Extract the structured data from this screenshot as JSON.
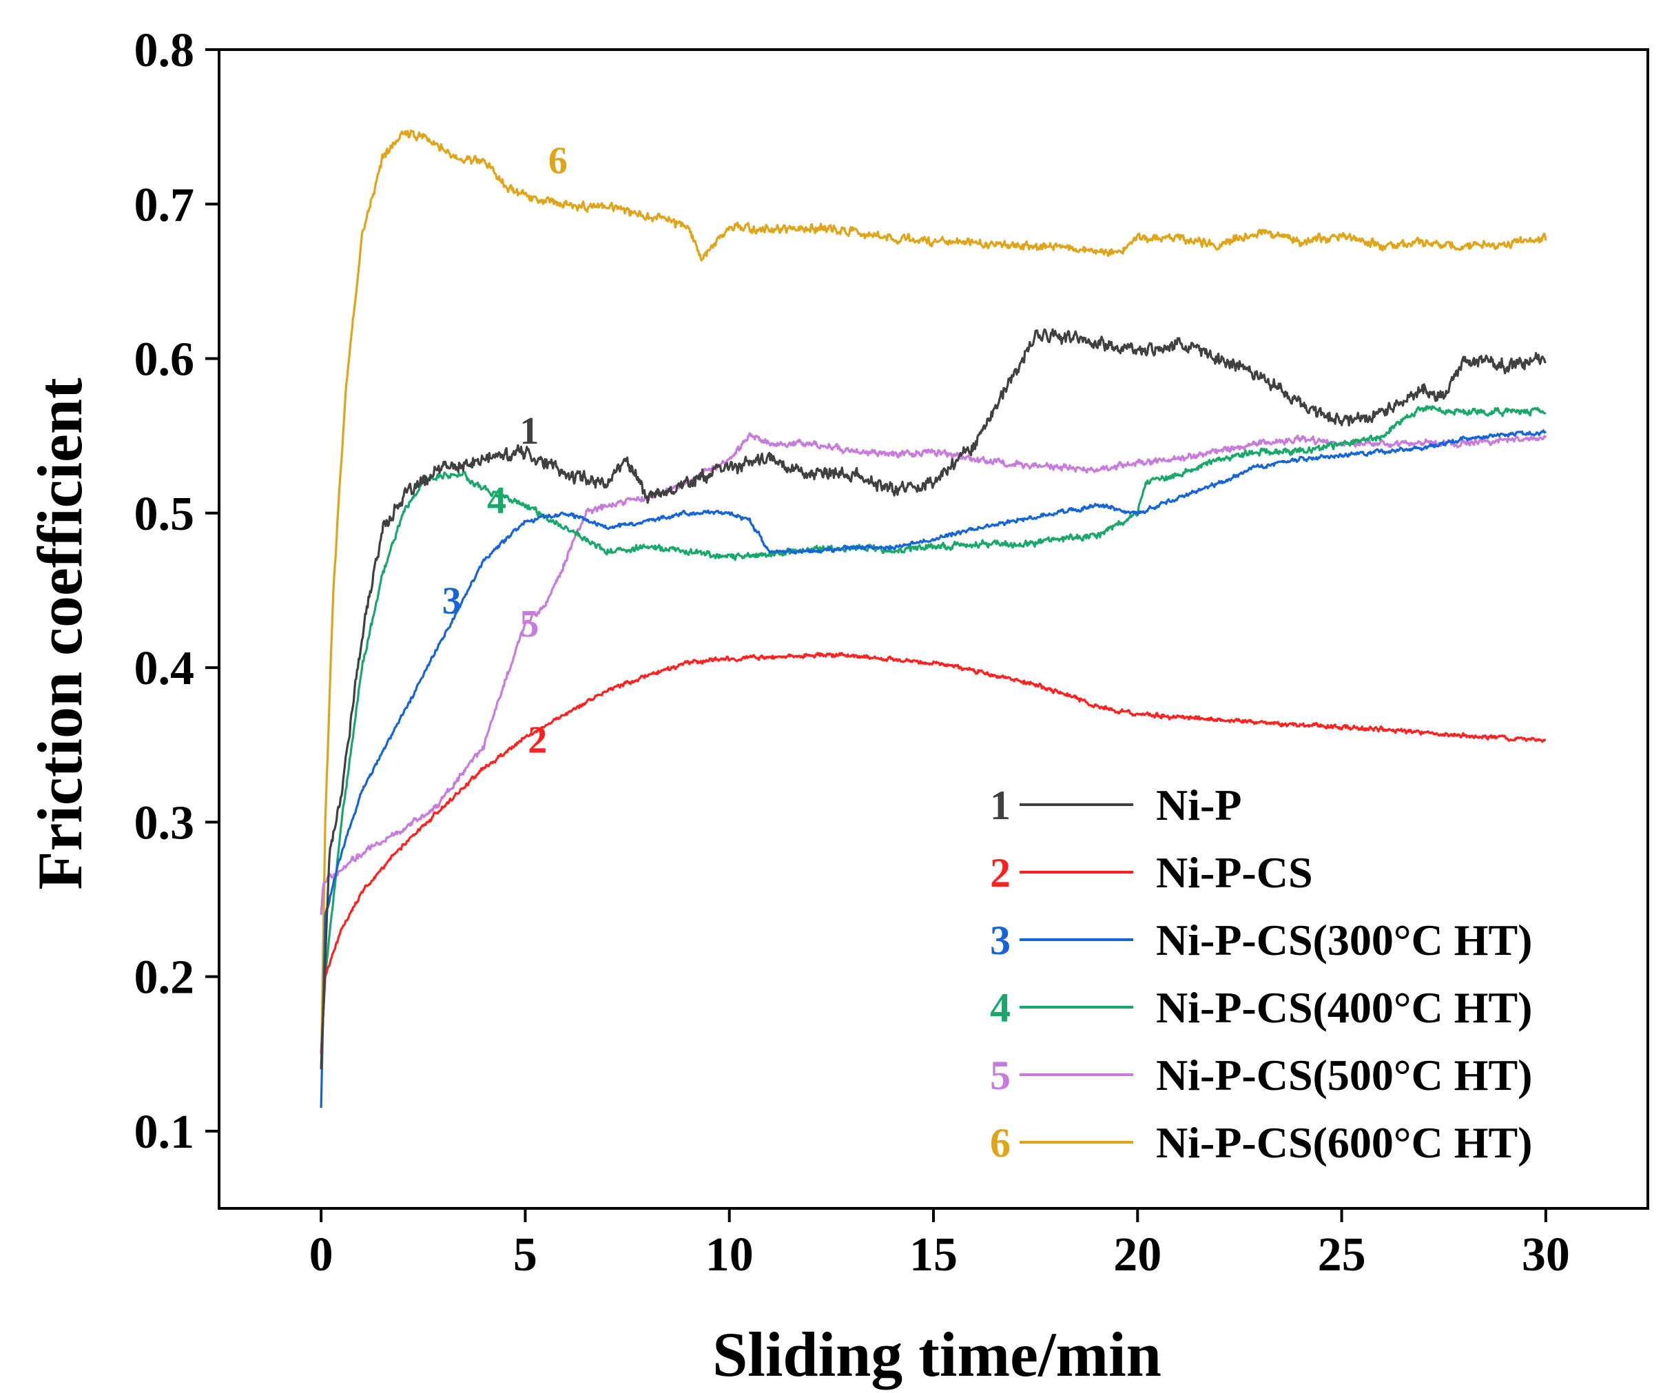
{
  "chart_data": {
    "type": "line",
    "xlabel": "Sliding time/min",
    "ylabel": "Friction coefficient",
    "xlim": [
      -2.5,
      32.5
    ],
    "ylim": [
      0.05,
      0.8
    ],
    "xticks": [
      0,
      5,
      10,
      15,
      20,
      25,
      30
    ],
    "yticks": [
      0.1,
      0.2,
      0.3,
      0.4,
      0.5,
      0.6,
      0.7,
      0.8
    ],
    "xtick_labels": [
      "0",
      "5",
      "10",
      "15",
      "20",
      "25",
      "30"
    ],
    "ytick_labels": [
      "0.1",
      "0.2",
      "0.3",
      "0.4",
      "0.5",
      "0.6",
      "0.7",
      "0.8"
    ],
    "grid": false,
    "legend_position": "lower-right",
    "series": [
      {
        "id": "1",
        "name": "Ni-P",
        "color": "#404040",
        "label_point": [
          5.1,
          0.545
        ],
        "noise": 0.006,
        "x": [
          0,
          0.2,
          0.5,
          1,
          1.5,
          2,
          2.5,
          3,
          3.5,
          4,
          5,
          6,
          7,
          7.5,
          8,
          9,
          10,
          11,
          12,
          13,
          14,
          15,
          16,
          17,
          17.5,
          18,
          19,
          20,
          21,
          22,
          23,
          24,
          25,
          26,
          27,
          27.5,
          28,
          29,
          30
        ],
        "y": [
          0.14,
          0.28,
          0.32,
          0.42,
          0.49,
          0.51,
          0.52,
          0.53,
          0.53,
          0.535,
          0.54,
          0.525,
          0.52,
          0.535,
          0.51,
          0.52,
          0.53,
          0.535,
          0.525,
          0.525,
          0.515,
          0.52,
          0.545,
          0.59,
          0.615,
          0.615,
          0.61,
          0.605,
          0.61,
          0.6,
          0.59,
          0.57,
          0.56,
          0.565,
          0.58,
          0.575,
          0.6,
          0.595,
          0.6
        ]
      },
      {
        "id": "2",
        "name": "Ni-P-CS",
        "color": "#ff2020",
        "label_point": [
          5.3,
          0.345
        ],
        "noise": 0.002,
        "x": [
          0,
          0.1,
          0.5,
          1,
          2,
          3,
          4,
          5,
          6,
          7,
          8,
          9,
          10,
          12,
          13,
          14,
          15,
          16,
          17,
          18,
          19,
          20,
          22,
          24,
          26,
          28,
          30
        ],
        "y": [
          0.15,
          0.2,
          0.23,
          0.255,
          0.285,
          0.31,
          0.335,
          0.355,
          0.37,
          0.385,
          0.395,
          0.403,
          0.406,
          0.408,
          0.408,
          0.405,
          0.403,
          0.398,
          0.392,
          0.385,
          0.375,
          0.37,
          0.366,
          0.363,
          0.36,
          0.356,
          0.353
        ]
      },
      {
        "id": "3",
        "name": "Ni-P-CS(300°C HT)",
        "color": "#1565d8",
        "label_point": [
          3.2,
          0.435
        ],
        "noise": 0.002,
        "x": [
          0,
          0.1,
          0.5,
          1,
          2,
          3,
          4,
          5,
          6,
          7,
          8,
          9,
          10,
          10.5,
          11,
          12,
          13,
          14,
          15,
          16,
          17,
          18,
          19,
          20,
          21,
          22,
          23,
          24,
          25,
          26,
          27,
          28,
          29,
          30
        ],
        "y": [
          0.115,
          0.24,
          0.28,
          0.32,
          0.37,
          0.42,
          0.47,
          0.495,
          0.5,
          0.49,
          0.495,
          0.5,
          0.5,
          0.495,
          0.475,
          0.475,
          0.478,
          0.478,
          0.483,
          0.49,
          0.495,
          0.5,
          0.505,
          0.5,
          0.51,
          0.52,
          0.53,
          0.535,
          0.537,
          0.54,
          0.542,
          0.548,
          0.551,
          0.552
        ]
      },
      {
        "id": "4",
        "name": "Ni-P-CS(400°C HT)",
        "color": "#17a86a",
        "label_point": [
          4.3,
          0.5
        ],
        "noise": 0.003,
        "x": [
          0,
          0.1,
          0.5,
          1,
          1.5,
          2,
          2.5,
          3,
          3.5,
          4,
          5,
          6,
          7,
          8,
          9,
          10,
          11,
          12,
          13,
          14,
          15,
          16,
          17,
          18,
          19,
          20,
          20.2,
          21,
          22,
          23,
          24,
          25,
          26,
          26.5,
          27,
          28,
          29,
          30
        ],
        "y": [
          0.15,
          0.2,
          0.3,
          0.4,
          0.46,
          0.5,
          0.52,
          0.525,
          0.525,
          0.515,
          0.505,
          0.49,
          0.475,
          0.478,
          0.475,
          0.472,
          0.473,
          0.477,
          0.478,
          0.476,
          0.478,
          0.48,
          0.48,
          0.483,
          0.485,
          0.5,
          0.52,
          0.525,
          0.535,
          0.54,
          0.54,
          0.545,
          0.55,
          0.56,
          0.568,
          0.565,
          0.566,
          0.566
        ]
      },
      {
        "id": "5",
        "name": "Ni-P-CS(500°C HT)",
        "color": "#c77bdd",
        "label_point": [
          5.1,
          0.42
        ],
        "noise": 0.003,
        "x": [
          0,
          0.05,
          0.3,
          1,
          2,
          3,
          4,
          4.5,
          5,
          5.5,
          6,
          6.5,
          7,
          8,
          9,
          10,
          10.5,
          11,
          12,
          13,
          14,
          15,
          16,
          17,
          18,
          19,
          20,
          21,
          22,
          23,
          24,
          25,
          26,
          27,
          28,
          29,
          30
        ],
        "y": [
          0.24,
          0.26,
          0.265,
          0.28,
          0.295,
          0.315,
          0.35,
          0.39,
          0.43,
          0.44,
          0.47,
          0.5,
          0.505,
          0.51,
          0.52,
          0.535,
          0.55,
          0.545,
          0.545,
          0.54,
          0.538,
          0.54,
          0.535,
          0.532,
          0.53,
          0.528,
          0.532,
          0.535,
          0.54,
          0.545,
          0.548,
          0.545,
          0.545,
          0.545,
          0.545,
          0.547,
          0.548
        ]
      },
      {
        "id": "6",
        "name": "Ni-P-CS(600°C HT)",
        "color": "#e0a419",
        "label_point": [
          5.8,
          0.72
        ],
        "noise": 0.004,
        "x": [
          0,
          0.1,
          0.3,
          0.6,
          1,
          1.5,
          2,
          2.5,
          3,
          3.5,
          4,
          4.5,
          5,
          6,
          7,
          8,
          8.5,
          9,
          9.3,
          10,
          11,
          12,
          13,
          14,
          15,
          16,
          17,
          18,
          19,
          19.5,
          20,
          21,
          22,
          23,
          24,
          25,
          26,
          27,
          28,
          29,
          30
        ],
        "y": [
          0.14,
          0.3,
          0.45,
          0.58,
          0.68,
          0.73,
          0.745,
          0.745,
          0.735,
          0.728,
          0.728,
          0.712,
          0.705,
          0.7,
          0.698,
          0.692,
          0.69,
          0.685,
          0.665,
          0.685,
          0.683,
          0.685,
          0.682,
          0.678,
          0.676,
          0.675,
          0.673,
          0.672,
          0.67,
          0.668,
          0.678,
          0.678,
          0.673,
          0.683,
          0.675,
          0.68,
          0.672,
          0.675,
          0.672,
          0.675,
          0.678
        ]
      }
    ]
  }
}
